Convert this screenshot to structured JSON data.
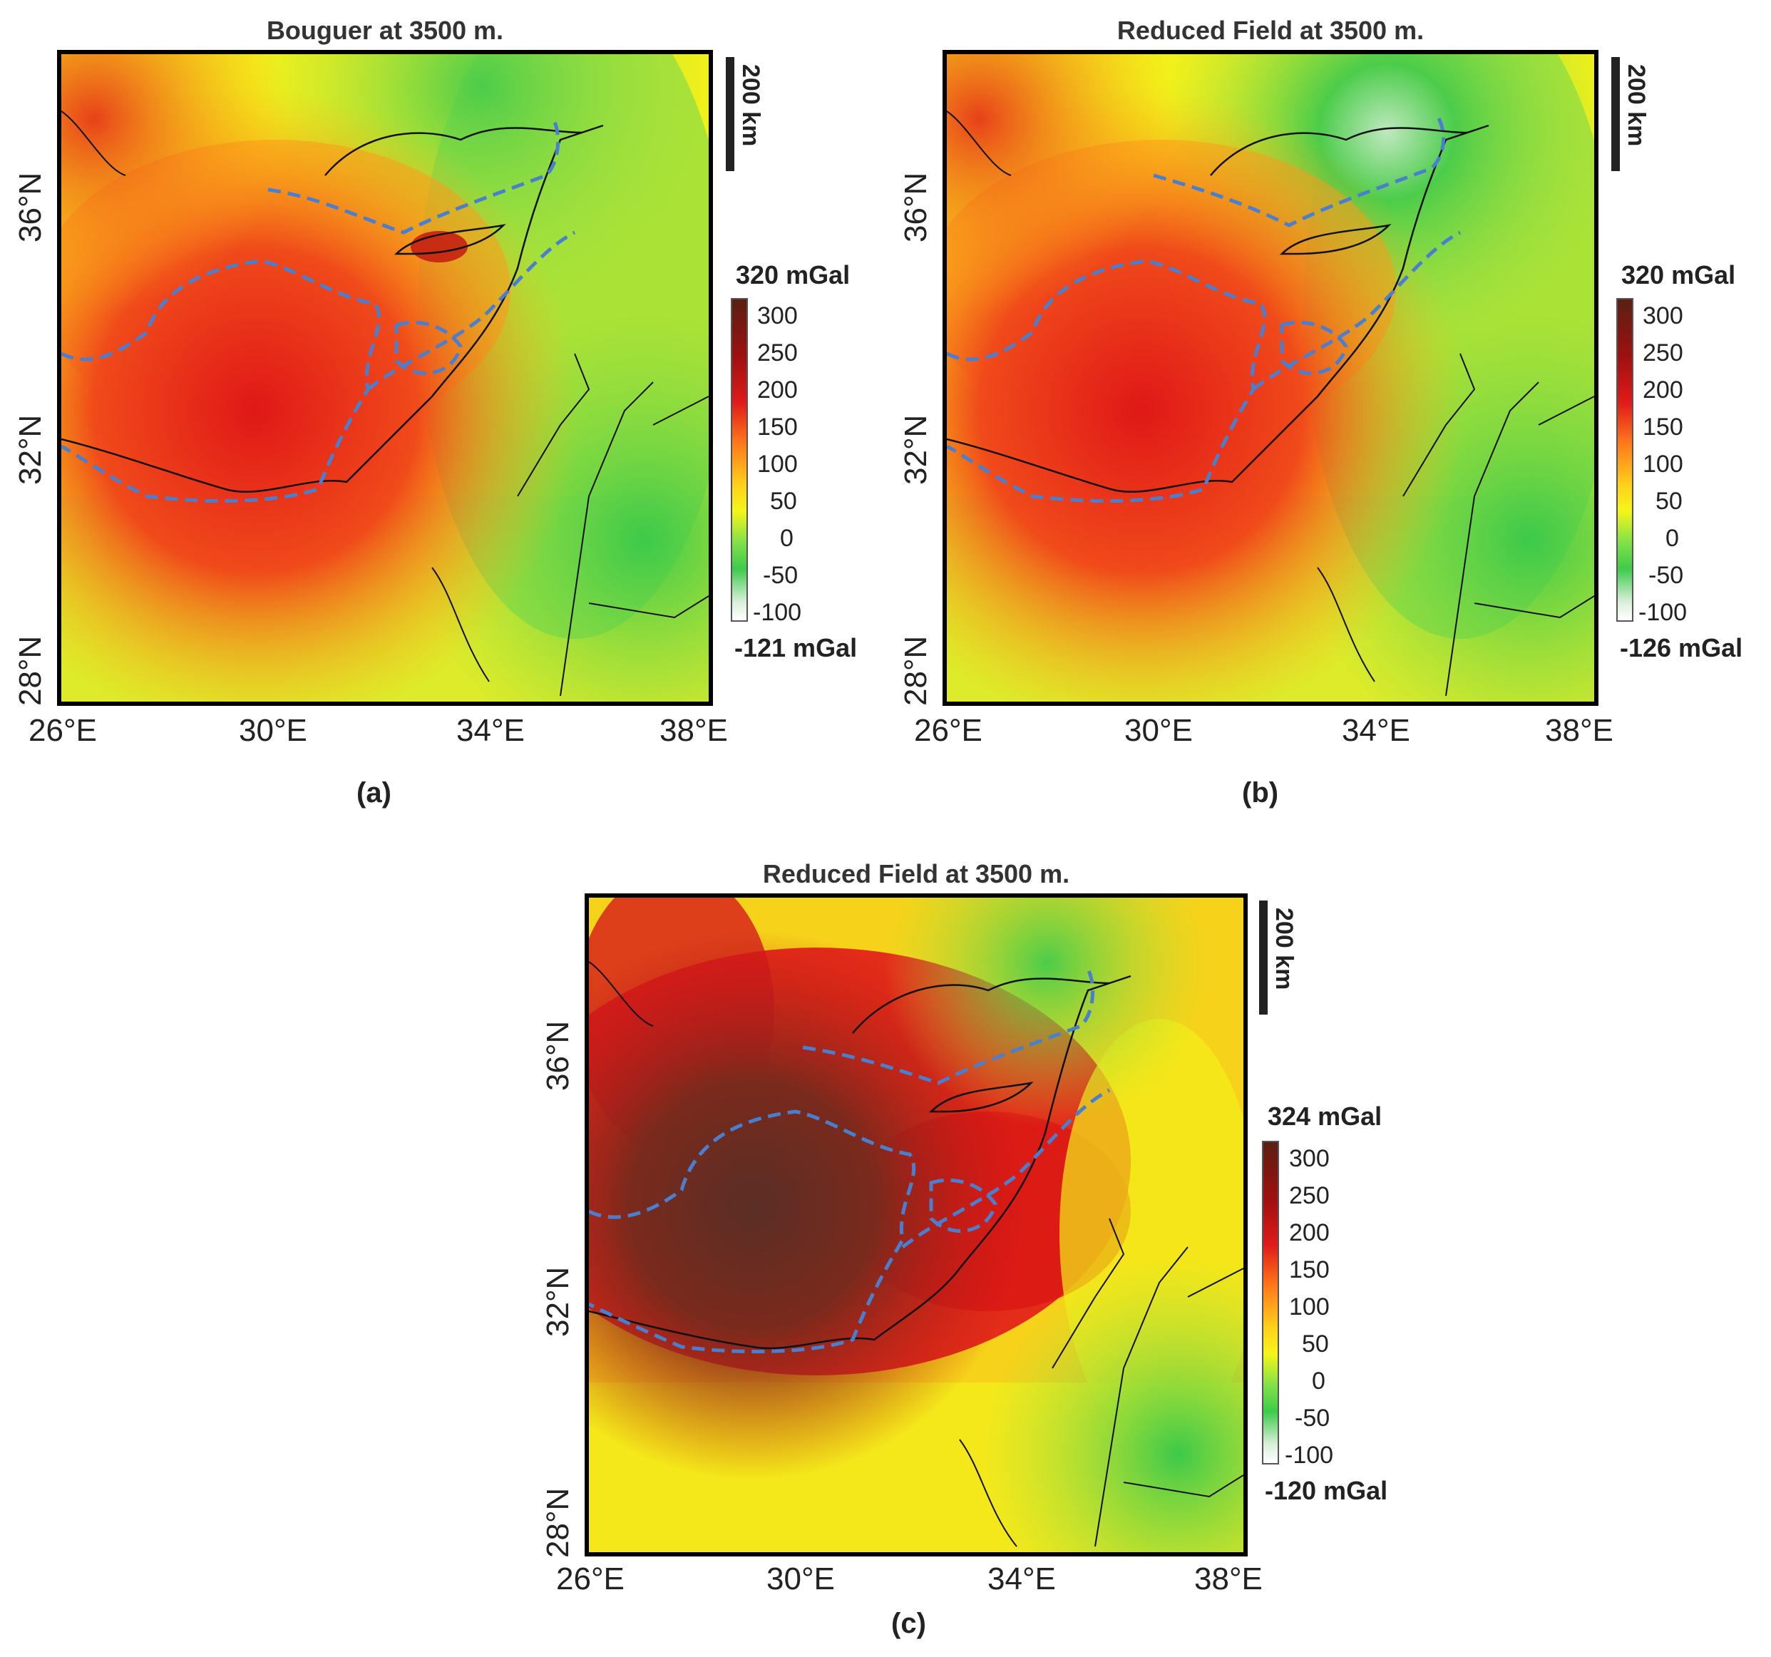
{
  "panels": [
    {
      "title": "Bouguer at 3500 m.",
      "label": "(a)",
      "scale": "200 km",
      "cb_max": "320 mGal",
      "cb_min": "-121 mGal",
      "cb_ticks": [
        "300",
        "250",
        "200",
        "150",
        "100",
        "50",
        "0",
        "-50",
        "-100"
      ],
      "lat_labels": [
        "36°N",
        "32°N",
        "28°N"
      ],
      "lon_labels": [
        "26°E",
        "30°E",
        "34°E",
        "38°E"
      ],
      "field_style": "moderate"
    },
    {
      "title": "Reduced Field at 3500 m.",
      "label": "(b)",
      "scale": "200 km",
      "cb_max": "320 mGal",
      "cb_min": "-126 mGal",
      "cb_ticks": [
        "300",
        "250",
        "200",
        "150",
        "100",
        "50",
        "0",
        "-50",
        "-100"
      ],
      "lat_labels": [
        "36°N",
        "32°N",
        "28°N"
      ],
      "lon_labels": [
        "26°E",
        "30°E",
        "34°E",
        "38°E"
      ],
      "field_style": "moderate"
    },
    {
      "title": "Reduced Field at 3500 m.",
      "label": "(c)",
      "scale": "200 km",
      "cb_max": "324 mGal",
      "cb_min": "-120 mGal",
      "cb_ticks": [
        "300",
        "250",
        "200",
        "150",
        "100",
        "50",
        "0",
        "-50",
        "-100"
      ],
      "lat_labels": [
        "36°N",
        "32°N",
        "28°N"
      ],
      "lon_labels": [
        "26°E",
        "30°E",
        "34°E",
        "38°E"
      ],
      "field_style": "strong"
    }
  ],
  "colors": {
    "dashed_outline": "#4a7fd0",
    "coastline": "#111111"
  }
}
